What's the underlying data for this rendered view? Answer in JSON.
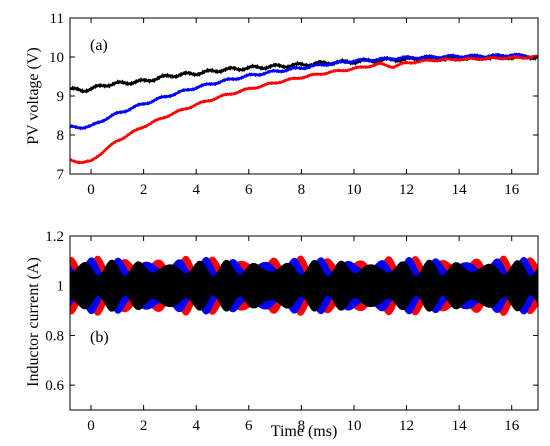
{
  "chart_data": [
    {
      "type": "line",
      "panel_label": "(a)",
      "ylabel": "PV voltage (V)",
      "xlabel": "",
      "xlim": [
        -0.8,
        17
      ],
      "ylim": [
        7,
        11
      ],
      "xticks": [
        0,
        2,
        4,
        6,
        8,
        10,
        12,
        14,
        16
      ],
      "yticks": [
        7,
        8,
        9,
        10,
        11
      ],
      "grid": false,
      "series": [
        {
          "color": "#000000",
          "x": [
            -0.8,
            -0.3,
            0,
            0.5,
            1,
            2,
            3,
            4,
            5,
            6,
            7,
            8,
            9,
            10,
            11,
            12,
            13,
            14,
            15,
            16,
            17
          ],
          "y": [
            9.17,
            9.15,
            9.18,
            9.28,
            9.32,
            9.38,
            9.52,
            9.58,
            9.67,
            9.72,
            9.76,
            9.8,
            9.85,
            9.88,
            9.92,
            9.94,
            9.96,
            9.98,
            10.0,
            10.0,
            10.0
          ],
          "ripple": 0.07
        },
        {
          "color": "#0000ff",
          "x": [
            -0.8,
            -0.3,
            0,
            0.5,
            1,
            2,
            3,
            4,
            5,
            6,
            7,
            8,
            9,
            10,
            11,
            12,
            13,
            14,
            15,
            16,
            17
          ],
          "y": [
            8.2,
            8.2,
            8.22,
            8.4,
            8.55,
            8.8,
            9.02,
            9.22,
            9.38,
            9.52,
            9.63,
            9.72,
            9.82,
            9.9,
            9.94,
            9.98,
            10.0,
            10.02,
            10.02,
            10.05,
            10.0
          ],
          "ripple": 0.05
        },
        {
          "color": "#ff0000",
          "x": [
            -0.8,
            -0.3,
            0,
            0.5,
            1,
            2,
            3,
            4,
            5,
            6,
            7,
            8,
            9,
            10,
            11,
            11.5,
            12,
            13,
            14,
            15,
            16,
            17
          ],
          "y": [
            7.35,
            7.3,
            7.32,
            7.6,
            7.85,
            8.22,
            8.52,
            8.78,
            9.0,
            9.18,
            9.34,
            9.48,
            9.6,
            9.7,
            9.82,
            9.75,
            9.85,
            9.92,
            9.94,
            9.96,
            9.98,
            10.0
          ],
          "ripple": 0.04
        }
      ]
    },
    {
      "type": "line",
      "panel_label": "(b)",
      "ylabel": "Inductor current (A)",
      "xlabel": "Time (ms)",
      "xlim": [
        -0.8,
        17
      ],
      "ylim": [
        0.5,
        1.2
      ],
      "xticks": [
        0,
        2,
        4,
        6,
        8,
        10,
        12,
        14,
        16
      ],
      "yticks": [
        0.6,
        0.8,
        1,
        1.2
      ],
      "grid": false,
      "series": [
        {
          "color": "#ff0000",
          "center": 1.0,
          "amplitude": 0.11
        },
        {
          "color": "#0000ff",
          "center": 1.0,
          "amplitude": 0.105
        },
        {
          "color": "#000000",
          "center": 1.0,
          "amplitude": 0.095
        }
      ]
    }
  ]
}
